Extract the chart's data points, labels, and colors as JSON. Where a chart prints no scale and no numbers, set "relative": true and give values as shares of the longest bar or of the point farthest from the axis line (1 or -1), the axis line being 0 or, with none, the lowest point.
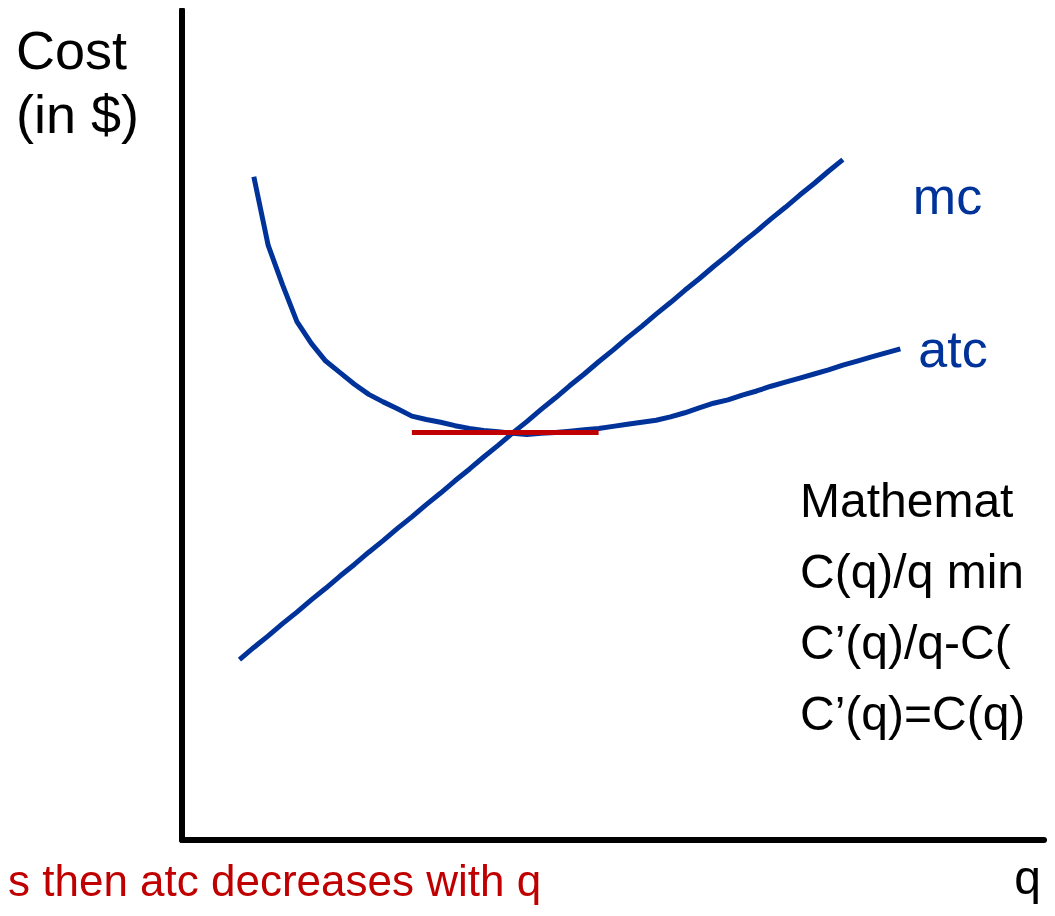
{
  "chart_data": {
    "type": "line",
    "relative": true,
    "ylabel": "Cost (in $)",
    "xlabel": "q",
    "grid": false,
    "legend": false,
    "marker": "none",
    "line_style": "solid",
    "categories": [
      null,
      null,
      null,
      null,
      null,
      null,
      null,
      null,
      null,
      null,
      null,
      null,
      null,
      null,
      null,
      null,
      null,
      null,
      null,
      null,
      null,
      null,
      null,
      null,
      null,
      null,
      null,
      null,
      null,
      null,
      null,
      null,
      null,
      null,
      null,
      null,
      null,
      null,
      null,
      null,
      null,
      null,
      null,
      null,
      null,
      null,
      null,
      null,
      null,
      null,
      null,
      null,
      null,
      null,
      null,
      null,
      null,
      null,
      null,
      null,
      null
    ],
    "series": [
      {
        "name": "mc",
        "color": "#003399",
        "values": [
          null,
          null,
          null,
          null,
          0.265,
          0.283,
          0.3,
          0.318,
          0.335,
          0.353,
          0.37,
          0.388,
          0.405,
          0.423,
          0.44,
          0.458,
          0.475,
          0.493,
          0.51,
          0.528,
          0.545,
          0.563,
          0.58,
          0.598,
          0.615,
          0.633,
          0.65,
          0.668,
          0.685,
          0.703,
          0.72,
          0.738,
          0.755,
          0.773,
          0.79,
          0.808,
          0.825,
          0.843,
          0.86,
          0.878,
          0.895,
          0.913,
          0.93,
          0.948,
          0.965,
          0.983,
          1,
          null,
          null,
          null,
          null,
          null,
          null,
          null,
          null,
          null,
          null,
          null,
          null,
          null,
          null
        ]
      },
      {
        "name": "atc",
        "color": "#003399",
        "values": [
          null,
          null,
          null,
          null,
          null,
          0.975,
          0.874,
          0.816,
          0.762,
          0.73,
          0.704,
          0.687,
          0.67,
          0.655,
          0.644,
          0.634,
          0.623,
          0.618,
          0.614,
          0.609,
          0.605,
          0.602,
          0.6,
          0.598,
          0.596,
          0.598,
          0.599,
          0.601,
          0.603,
          0.605,
          0.608,
          0.611,
          0.614,
          0.617,
          0.622,
          0.628,
          0.635,
          0.642,
          0.647,
          0.654,
          0.66,
          0.667,
          0.673,
          0.679,
          0.685,
          0.691,
          0.698,
          0.704,
          0.71,
          0.716,
          0.722,
          null,
          null,
          null,
          null,
          null,
          null,
          null,
          null,
          null,
          null
        ]
      },
      {
        "color": "#c00000",
        "values": [
          null,
          null,
          null,
          null,
          null,
          null,
          null,
          null,
          null,
          null,
          null,
          null,
          null,
          null,
          null,
          null,
          0.599,
          0.599,
          0.599,
          0.599,
          0.599,
          0.599,
          0.599,
          0.599,
          0.599,
          0.599,
          0.599,
          0.599,
          0.599,
          0.599,
          null,
          null,
          null,
          null,
          null,
          null,
          null,
          null,
          null,
          null,
          null,
          null,
          null,
          null,
          null,
          null,
          null,
          null,
          null,
          null,
          null,
          null,
          null,
          null,
          null,
          null,
          null,
          null,
          null,
          null,
          null
        ]
      }
    ],
    "annotations": [
      "Mathemat",
      "C(q)/q min",
      "C’(q)/q-C(",
      "C’(q)=C(q)",
      "s then atc decreases with q"
    ]
  }
}
